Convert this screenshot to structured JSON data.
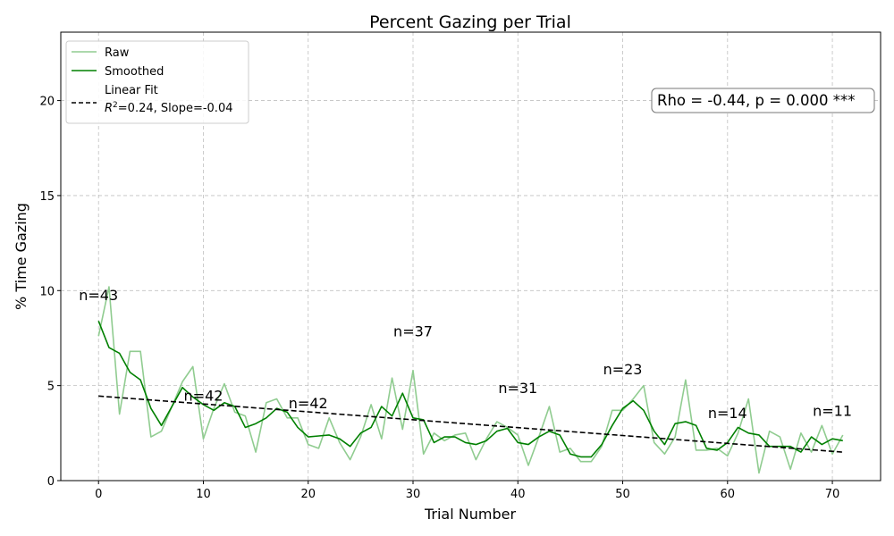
{
  "chart_data": {
    "type": "line",
    "title": "Percent Gazing per Trial",
    "xlabel": "Trial Number",
    "ylabel": "% Time Gazing",
    "xlim": [
      -3.6,
      74.6
    ],
    "ylim": [
      0,
      23.6
    ],
    "xticks": [
      0,
      10,
      20,
      30,
      40,
      50,
      60,
      70
    ],
    "yticks": [
      0,
      5,
      10,
      15,
      20
    ],
    "grid": true,
    "legend_position": "top-left",
    "series": [
      {
        "name": "Raw",
        "color": "#90cc90",
        "x": [
          0,
          1,
          2,
          3,
          4,
          5,
          6,
          7,
          8,
          9,
          10,
          11,
          12,
          13,
          14,
          15,
          16,
          17,
          18,
          19,
          20,
          21,
          22,
          23,
          24,
          25,
          26,
          27,
          28,
          29,
          30,
          31,
          32,
          33,
          34,
          35,
          36,
          37,
          38,
          39,
          40,
          41,
          42,
          43,
          44,
          45,
          46,
          47,
          48,
          49,
          50,
          51,
          52,
          53,
          54,
          55,
          56,
          57,
          58,
          59,
          60,
          61,
          62,
          63,
          64,
          65,
          66,
          67,
          68,
          69,
          70,
          71
        ],
        "values": [
          7.6,
          10.2,
          3.5,
          6.8,
          6.8,
          2.3,
          2.6,
          3.9,
          5.2,
          6.0,
          2.2,
          3.8,
          5.1,
          3.6,
          3.4,
          1.5,
          4.1,
          4.3,
          3.3,
          3.3,
          1.9,
          1.7,
          3.3,
          2.0,
          1.1,
          2.3,
          4.0,
          2.2,
          5.4,
          2.7,
          5.8,
          1.4,
          2.5,
          2.1,
          2.4,
          2.5,
          1.1,
          2.2,
          3.1,
          2.8,
          2.4,
          0.8,
          2.3,
          3.9,
          1.5,
          1.7,
          1.0,
          1.0,
          1.8,
          3.7,
          3.7,
          4.3,
          5.0,
          2.0,
          1.4,
          2.3,
          5.3,
          1.6,
          1.6,
          1.7,
          1.3,
          2.5,
          4.3,
          0.4,
          2.6,
          2.3,
          0.6,
          2.5,
          1.5,
          2.9,
          1.4,
          2.4
        ]
      },
      {
        "name": "Smoothed",
        "color": "#008000",
        "x": [
          0,
          1,
          2,
          3,
          4,
          5,
          6,
          7,
          8,
          9,
          10,
          11,
          12,
          13,
          14,
          15,
          16,
          17,
          18,
          19,
          20,
          21,
          22,
          23,
          24,
          25,
          26,
          27,
          28,
          29,
          30,
          31,
          32,
          33,
          34,
          35,
          36,
          37,
          38,
          39,
          40,
          41,
          42,
          43,
          44,
          45,
          46,
          47,
          48,
          49,
          50,
          51,
          52,
          53,
          54,
          55,
          56,
          57,
          58,
          59,
          60,
          61,
          62,
          63,
          64,
          65,
          66,
          67,
          68,
          69,
          70,
          71
        ],
        "values": [
          8.4,
          7.0,
          6.7,
          5.7,
          5.3,
          3.8,
          2.9,
          3.9,
          4.9,
          4.4,
          4.0,
          3.7,
          4.1,
          3.9,
          2.8,
          3.0,
          3.3,
          3.8,
          3.6,
          2.8,
          2.3,
          2.35,
          2.4,
          2.2,
          1.8,
          2.5,
          2.8,
          3.9,
          3.4,
          4.6,
          3.3,
          3.2,
          2.0,
          2.3,
          2.3,
          2.0,
          1.9,
          2.1,
          2.6,
          2.75,
          2.0,
          1.9,
          2.3,
          2.6,
          2.4,
          1.4,
          1.25,
          1.25,
          1.9,
          2.9,
          3.8,
          4.2,
          3.7,
          2.6,
          1.9,
          3.0,
          3.1,
          2.9,
          1.7,
          1.6,
          2.0,
          2.8,
          2.5,
          2.4,
          1.8,
          1.8,
          1.8,
          1.5,
          2.3,
          1.9,
          2.2,
          2.1
        ]
      },
      {
        "name": "Linear Fit\nR²=0.24, Slope=-0.04",
        "color": "#000000",
        "dashed": true,
        "x": [
          0,
          71
        ],
        "values": [
          4.45,
          1.5
        ]
      }
    ],
    "annotations": [
      {
        "text": "n=43",
        "x": 0,
        "y": 9.5
      },
      {
        "text": "n=42",
        "x": 10,
        "y": 4.2
      },
      {
        "text": "n=42",
        "x": 20,
        "y": 3.8
      },
      {
        "text": "n=37",
        "x": 30,
        "y": 7.6
      },
      {
        "text": "n=31",
        "x": 40,
        "y": 4.6
      },
      {
        "text": "n=23",
        "x": 50,
        "y": 5.6
      },
      {
        "text": "n=14",
        "x": 60,
        "y": 3.3
      },
      {
        "text": "n=11",
        "x": 70,
        "y": 3.4
      }
    ],
    "stats_box": "Rho = -0.44, p = 0.000 ***"
  },
  "legend": {
    "raw_label": "Raw",
    "smoothed_label": "Smoothed",
    "fit_label_line1": "Linear Fit",
    "fit_label_r2_suffix": "=0.24, Slope=-0.04"
  }
}
